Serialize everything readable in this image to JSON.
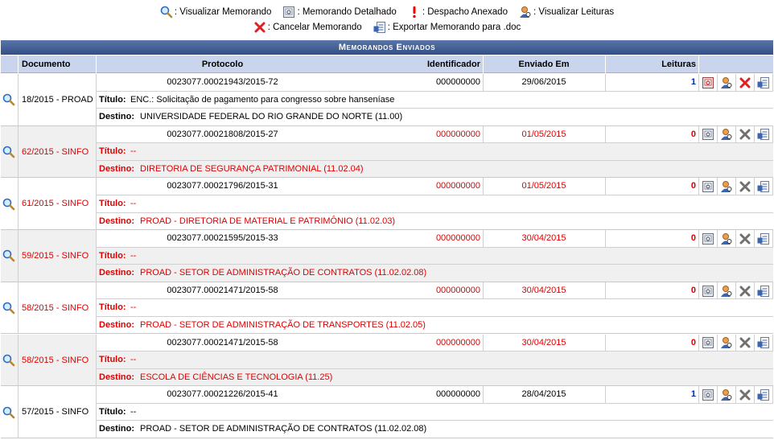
{
  "legend": [
    {
      "label": ": Visualizar Memorando",
      "icon": "mag"
    },
    {
      "label": ": Memorando Detalhado",
      "icon": "detail"
    },
    {
      "label": ": Despacho Anexado",
      "icon": "excl"
    },
    {
      "label": ": Visualizar Leituras",
      "icon": "person"
    },
    {
      "label": ": Cancelar Memorando",
      "icon": "xred"
    },
    {
      "label": ": Exportar Memorando para .doc",
      "icon": "export"
    }
  ],
  "table": {
    "caption": "Memorandos Enviados",
    "columns": [
      "Documento",
      "Protocolo",
      "Identificador",
      "Enviado Em",
      "Leituras"
    ],
    "titulo_label": "Título:",
    "destino_label": "Destino:",
    "rows": [
      {
        "documento": "18/2015 - PROAD",
        "protocolo": "0023077.00021943/2015-72",
        "identificador": "000000000",
        "enviado_em": "29/06/2015",
        "leituras": 1,
        "titulo": "ENC.: Solicitação de pagamento para congresso sobre hanseníase",
        "destino": "UNIVERSIDADE FEDERAL DO RIO GRANDE DO NORTE (11.00)"
      },
      {
        "documento": "62/2015 - SINFO",
        "protocolo": "0023077.00021808/2015-27",
        "identificador": "000000000",
        "enviado_em": "01/05/2015",
        "leituras": 0,
        "titulo": "--",
        "destino": "DIRETORIA DE SEGURANÇA PATRIMONIAL (11.02.04)"
      },
      {
        "documento": "61/2015 - SINFO",
        "protocolo": "0023077.00021796/2015-31",
        "identificador": "000000000",
        "enviado_em": "01/05/2015",
        "leituras": 0,
        "titulo": "--",
        "destino": "PROAD - DIRETORIA DE MATERIAL E PATRIMÔNIO (11.02.03)"
      },
      {
        "documento": "59/2015 - SINFO",
        "protocolo": "0023077.00021595/2015-33",
        "identificador": "000000000",
        "enviado_em": "30/04/2015",
        "leituras": 0,
        "titulo": "--",
        "destino": "PROAD - SETOR DE ADMINISTRAÇÃO DE CONTRATOS (11.02.02.08)"
      },
      {
        "documento": "58/2015 - SINFO",
        "protocolo": "0023077.00021471/2015-58",
        "identificador": "000000000",
        "enviado_em": "30/04/2015",
        "leituras": 0,
        "titulo": "--",
        "destino": "PROAD - SETOR DE ADMINISTRAÇÃO DE TRANSPORTES (11.02.05)"
      },
      {
        "documento": "58/2015 - SINFO",
        "protocolo": "0023077.00021471/2015-58",
        "identificador": "000000000",
        "enviado_em": "30/04/2015",
        "leituras": 0,
        "titulo": "--",
        "destino": "ESCOLA DE CIÊNCIAS E TECNOLOGIA (11.25)"
      },
      {
        "documento": "57/2015 - SINFO",
        "protocolo": "0023077.00021226/2015-41",
        "identificador": "000000000",
        "enviado_em": "28/04/2015",
        "leituras": 1,
        "titulo": "--",
        "destino": "PROAD - SETOR DE ADMINISTRAÇÃO DE CONTRATOS (11.02.02.08)"
      }
    ]
  }
}
